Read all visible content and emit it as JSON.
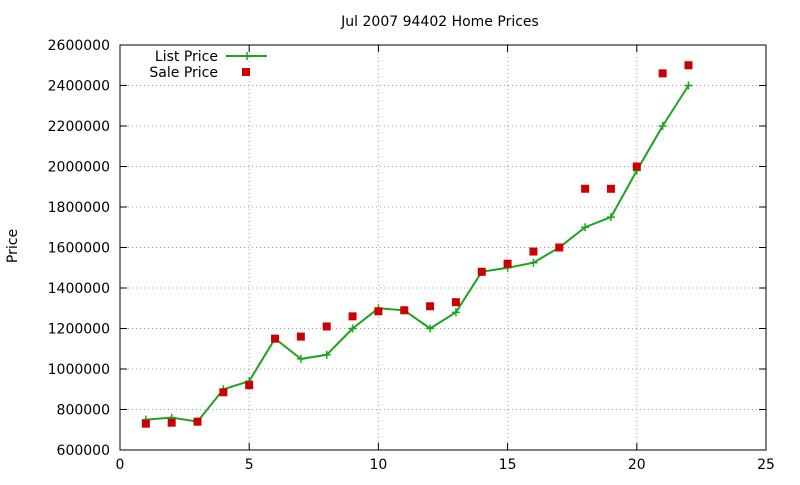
{
  "chart_data": {
    "type": "line",
    "title": "Jul 2007 94402 Home Prices",
    "xlabel": "",
    "ylabel": "Price",
    "xlim": [
      0,
      25
    ],
    "ylim": [
      600000,
      2600000
    ],
    "xticks": [
      "0",
      "5",
      "10",
      "15",
      "20",
      "25"
    ],
    "yticks": [
      "600000",
      "800000",
      "1000000",
      "1200000",
      "1400000",
      "1600000",
      "1800000",
      "2000000",
      "2200000",
      "2400000",
      "2600000"
    ],
    "grid": true,
    "legend_position": "top-left",
    "series": [
      {
        "name": "List Price",
        "style": "linespoints",
        "color": "#1aa51a",
        "marker": "plus",
        "x": [
          1,
          2,
          3,
          4,
          5,
          6,
          7,
          8,
          9,
          10,
          11,
          12,
          13,
          14,
          15,
          16,
          17,
          18,
          19,
          20,
          21,
          22
        ],
        "y": [
          750000,
          760000,
          740000,
          900000,
          940000,
          1150000,
          1050000,
          1070000,
          1200000,
          1300000,
          1290000,
          1200000,
          1280000,
          1480000,
          1500000,
          1525000,
          1600000,
          1700000,
          1750000,
          1980000,
          2200000,
          2400000
        ]
      },
      {
        "name": "Sale Price",
        "style": "points",
        "color": "#cc0000",
        "marker": "square",
        "x": [
          1,
          2,
          3,
          4,
          5,
          6,
          7,
          8,
          9,
          10,
          11,
          12,
          13,
          14,
          15,
          16,
          17,
          18,
          19,
          20,
          21,
          22
        ],
        "y": [
          730000,
          735000,
          740000,
          885000,
          920000,
          1150000,
          1160000,
          1210000,
          1260000,
          1285000,
          1290000,
          1310000,
          1330000,
          1480000,
          1520000,
          1580000,
          1600000,
          1890000,
          1890000,
          2000000,
          2460000,
          2500000
        ]
      }
    ]
  }
}
